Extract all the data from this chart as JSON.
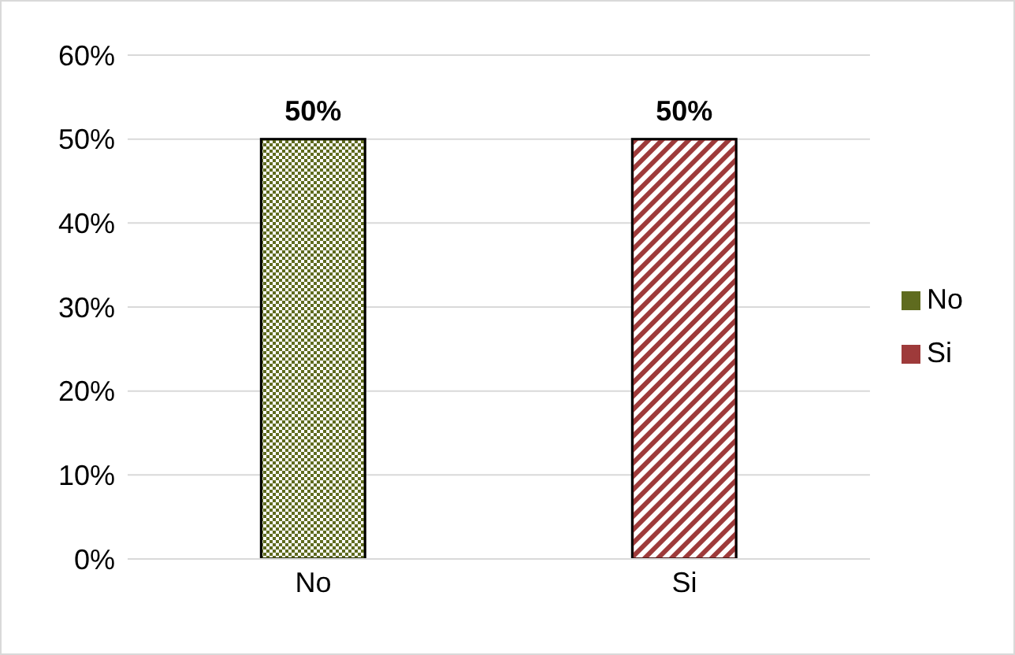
{
  "chart_data": {
    "type": "bar",
    "categories": [
      "No",
      "Si"
    ],
    "series": [
      {
        "name": "No",
        "color": "#5f6b1f",
        "values": [
          50,
          null
        ],
        "value_labels": [
          "50%",
          null
        ]
      },
      {
        "name": "Si",
        "color": "#9e3a3a",
        "values": [
          null,
          50
        ],
        "value_labels": [
          null,
          "50%"
        ]
      }
    ],
    "stacked": true,
    "ylim": [
      0,
      60
    ],
    "yticks": [
      {
        "value": 0,
        "label": "0%"
      },
      {
        "value": 10,
        "label": "10%"
      },
      {
        "value": 20,
        "label": "20%"
      },
      {
        "value": 30,
        "label": "30%"
      },
      {
        "value": 40,
        "label": "40%"
      },
      {
        "value": 50,
        "label": "50%"
      },
      {
        "value": 60,
        "label": "60%"
      }
    ],
    "grid": "y",
    "legend": "right"
  }
}
